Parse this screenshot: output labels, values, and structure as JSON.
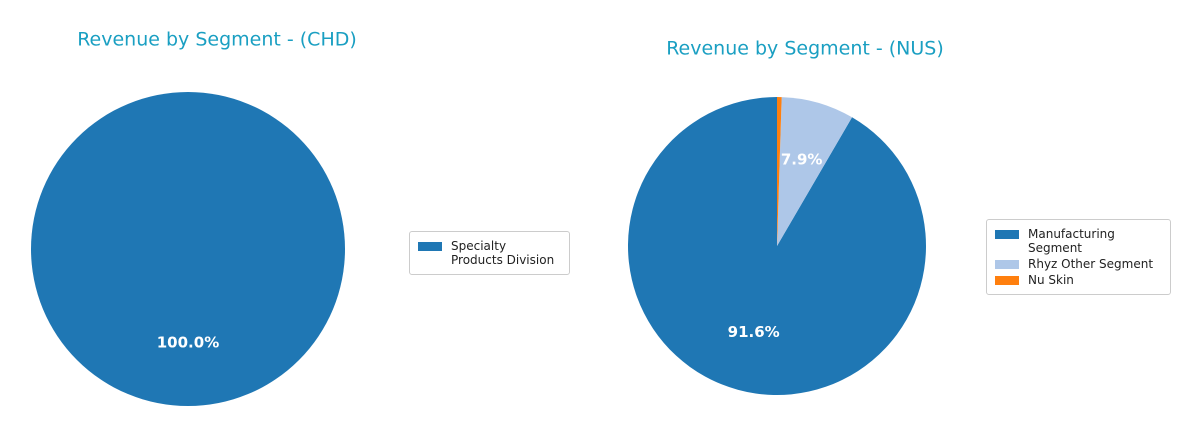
{
  "chart_data": [
    {
      "type": "pie",
      "title": "Revenue by Segment - (CHD)",
      "categories": [
        "Specialty Products Division"
      ],
      "values": [
        100.0
      ],
      "value_labels": [
        "100.0%"
      ],
      "colors": [
        "#1f77b4"
      ],
      "start_angle": 90,
      "direction": "counterclockwise",
      "legend": "right"
    },
    {
      "type": "pie",
      "title": "Revenue by Segment - (NUS)",
      "categories": [
        "Manufacturing Segment",
        "Rhyz Other Segment",
        "Nu Skin"
      ],
      "values": [
        91.6,
        7.9,
        0.5
      ],
      "value_labels": [
        "91.6%",
        "7.9%",
        null
      ],
      "colors": [
        "#1f77b4",
        "#aec7e8",
        "#ff7f0e"
      ],
      "start_angle": 90,
      "direction": "counterclockwise",
      "legend": "right"
    }
  ]
}
